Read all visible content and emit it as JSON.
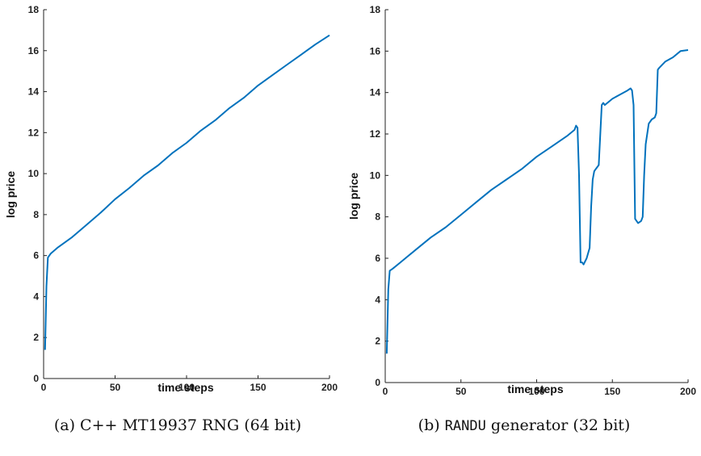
{
  "line_color": "#0072BD",
  "chart_data": [
    {
      "type": "line",
      "caption": "(a) C++ MT19937 RNG (64 bit)",
      "xlabel": "time steps",
      "ylabel": "log price",
      "xlim": [
        0,
        200
      ],
      "ylim": [
        0,
        18
      ],
      "xticks": [
        0,
        50,
        100,
        150,
        200
      ],
      "yticks": [
        0,
        2,
        4,
        6,
        8,
        10,
        12,
        14,
        16,
        18
      ],
      "grid": false,
      "series": [
        {
          "x": [
            1,
            2,
            3,
            5,
            10,
            20,
            30,
            40,
            50,
            60,
            70,
            80,
            90,
            100,
            110,
            120,
            130,
            140,
            150,
            160,
            170,
            180,
            190,
            200
          ],
          "y": [
            1.4,
            4.5,
            5.9,
            6.1,
            6.4,
            6.9,
            7.5,
            8.1,
            8.75,
            9.3,
            9.9,
            10.4,
            11.0,
            11.5,
            12.1,
            12.6,
            13.2,
            13.7,
            14.3,
            14.8,
            15.3,
            15.8,
            16.3,
            16.75
          ]
        }
      ]
    },
    {
      "type": "line",
      "caption_prefix": "(b) ",
      "caption_code": "RANDU",
      "caption_suffix": " generator (32 bit)",
      "xlabel": "time steps",
      "ylabel": "log price",
      "xlim": [
        0,
        200
      ],
      "ylim": [
        0,
        18
      ],
      "xticks": [
        0,
        50,
        100,
        150,
        200
      ],
      "yticks": [
        0,
        2,
        4,
        6,
        8,
        10,
        12,
        14,
        16,
        18
      ],
      "grid": false,
      "series": [
        {
          "x": [
            1,
            2,
            3,
            5,
            10,
            20,
            30,
            40,
            50,
            60,
            70,
            80,
            90,
            100,
            110,
            120,
            125,
            126,
            127,
            128,
            129,
            130,
            131,
            133,
            135,
            136,
            137,
            138,
            139,
            141,
            143,
            144,
            145,
            150,
            155,
            160,
            162,
            163,
            164,
            165,
            167,
            169,
            170,
            171,
            172,
            174,
            176,
            178,
            179,
            180,
            181,
            185,
            190,
            195,
            200
          ],
          "y": [
            1.4,
            4.5,
            5.4,
            5.5,
            5.8,
            6.4,
            7.0,
            7.5,
            8.1,
            8.7,
            9.3,
            9.8,
            10.3,
            10.9,
            11.4,
            11.9,
            12.2,
            12.4,
            12.3,
            10.0,
            5.8,
            5.8,
            5.7,
            6.0,
            6.5,
            8.5,
            9.8,
            10.2,
            10.3,
            10.5,
            13.4,
            13.5,
            13.4,
            13.7,
            13.9,
            14.1,
            14.2,
            14.1,
            13.4,
            7.9,
            7.7,
            7.8,
            8.0,
            10.0,
            11.5,
            12.5,
            12.7,
            12.8,
            13.0,
            15.1,
            15.2,
            15.5,
            15.7,
            16.0,
            16.05
          ]
        }
      ]
    }
  ]
}
